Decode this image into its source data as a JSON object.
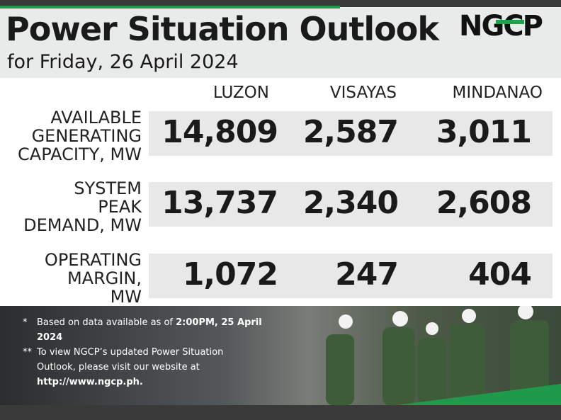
{
  "header": {
    "title": "Power Situation Outlook",
    "subtitle": "for Friday, 26 April 2024",
    "logo": "NGCP"
  },
  "table": {
    "columns": [
      "LUZON",
      "VISAYAS",
      "MINDANAO"
    ],
    "rows": [
      {
        "label": [
          "AVAILABLE",
          "GENERATING",
          "CAPACITY, MW"
        ],
        "values": [
          "14,809",
          "2,587",
          "3,011"
        ]
      },
      {
        "label": [
          "SYSTEM",
          "PEAK",
          "DEMAND, MW"
        ],
        "values": [
          "13,737",
          "2,340",
          "2,608"
        ]
      },
      {
        "label": [
          "OPERATING",
          "MARGIN,",
          "MW"
        ],
        "values": [
          "1,072",
          "247",
          "404"
        ]
      }
    ]
  },
  "notes": [
    {
      "marker": "*",
      "text": "Based on data available as of ",
      "bold": "2:00PM, 25 April 2024"
    },
    {
      "marker": "**",
      "text": "To view NGCP’s updated Power Situation Outlook, please visit our website at ",
      "bold": "http://www.ngcp.ph."
    }
  ]
}
